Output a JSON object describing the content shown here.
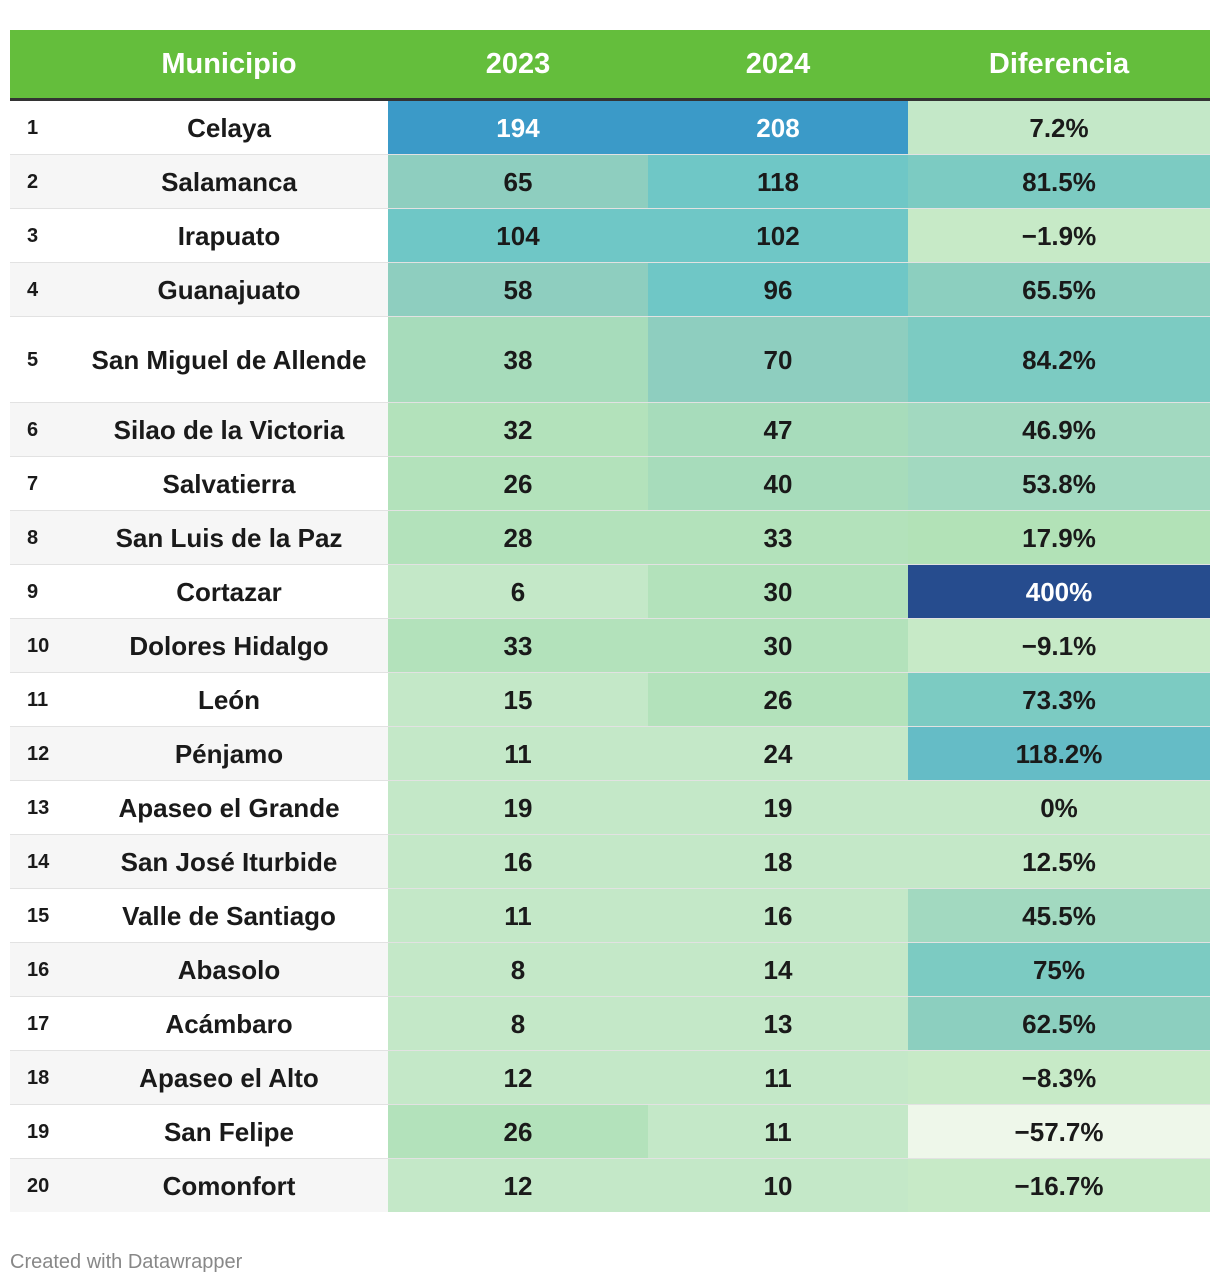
{
  "chart_data": {
    "type": "table",
    "columns": [
      "",
      "Municipio",
      "2023",
      "2024",
      "Diferencia"
    ],
    "rows": [
      {
        "rank": "1",
        "municipio": "Celaya",
        "y2023": "194",
        "y2024": "208",
        "diff": "7.2%",
        "v2023": 194,
        "v2024": 208,
        "vdiff": 7.2
      },
      {
        "rank": "2",
        "municipio": "Salamanca",
        "y2023": "65",
        "y2024": "118",
        "diff": "81.5%",
        "v2023": 65,
        "v2024": 118,
        "vdiff": 81.5
      },
      {
        "rank": "3",
        "municipio": "Irapuato",
        "y2023": "104",
        "y2024": "102",
        "diff": "−1.9%",
        "v2023": 104,
        "v2024": 102,
        "vdiff": -1.9
      },
      {
        "rank": "4",
        "municipio": "Guanajuato",
        "y2023": "58",
        "y2024": "96",
        "diff": "65.5%",
        "v2023": 58,
        "v2024": 96,
        "vdiff": 65.5
      },
      {
        "rank": "5",
        "municipio": "San Miguel de Allende",
        "y2023": "38",
        "y2024": "70",
        "diff": "84.2%",
        "v2023": 38,
        "v2024": 70,
        "vdiff": 84.2
      },
      {
        "rank": "6",
        "municipio": "Silao de la Victoria",
        "y2023": "32",
        "y2024": "47",
        "diff": "46.9%",
        "v2023": 32,
        "v2024": 47,
        "vdiff": 46.9
      },
      {
        "rank": "7",
        "municipio": "Salvatierra",
        "y2023": "26",
        "y2024": "40",
        "diff": "53.8%",
        "v2023": 26,
        "v2024": 40,
        "vdiff": 53.8
      },
      {
        "rank": "8",
        "municipio": "San Luis de la Paz",
        "y2023": "28",
        "y2024": "33",
        "diff": "17.9%",
        "v2023": 28,
        "v2024": 33,
        "vdiff": 17.9
      },
      {
        "rank": "9",
        "municipio": "Cortazar",
        "y2023": "6",
        "y2024": "30",
        "diff": "400%",
        "v2023": 6,
        "v2024": 30,
        "vdiff": 400
      },
      {
        "rank": "10",
        "municipio": "Dolores Hidalgo",
        "y2023": "33",
        "y2024": "30",
        "diff": "−9.1%",
        "v2023": 33,
        "v2024": 30,
        "vdiff": -9.1
      },
      {
        "rank": "11",
        "municipio": "León",
        "y2023": "15",
        "y2024": "26",
        "diff": "73.3%",
        "v2023": 15,
        "v2024": 26,
        "vdiff": 73.3
      },
      {
        "rank": "12",
        "municipio": "Pénjamo",
        "y2023": "11",
        "y2024": "24",
        "diff": "118.2%",
        "v2023": 11,
        "v2024": 24,
        "vdiff": 118.2
      },
      {
        "rank": "13",
        "municipio": "Apaseo el Grande",
        "y2023": "19",
        "y2024": "19",
        "diff": "0%",
        "v2023": 19,
        "v2024": 19,
        "vdiff": 0
      },
      {
        "rank": "14",
        "municipio": "San José Iturbide",
        "y2023": "16",
        "y2024": "18",
        "diff": "12.5%",
        "v2023": 16,
        "v2024": 18,
        "vdiff": 12.5
      },
      {
        "rank": "15",
        "municipio": "Valle de Santiago",
        "y2023": "11",
        "y2024": "16",
        "diff": "45.5%",
        "v2023": 11,
        "v2024": 16,
        "vdiff": 45.5
      },
      {
        "rank": "16",
        "municipio": "Abasolo",
        "y2023": "8",
        "y2024": "14",
        "diff": "75%",
        "v2023": 8,
        "v2024": 14,
        "vdiff": 75
      },
      {
        "rank": "17",
        "municipio": "Acámbaro",
        "y2023": "8",
        "y2024": "13",
        "diff": "62.5%",
        "v2023": 8,
        "v2024": 13,
        "vdiff": 62.5
      },
      {
        "rank": "18",
        "municipio": "Apaseo el Alto",
        "y2023": "12",
        "y2024": "11",
        "diff": "−8.3%",
        "v2023": 12,
        "v2024": 11,
        "vdiff": -8.3
      },
      {
        "rank": "19",
        "municipio": "San Felipe",
        "y2023": "26",
        "y2024": "11",
        "diff": "−57.7%",
        "v2023": 26,
        "v2024": 11,
        "vdiff": -57.7
      },
      {
        "rank": "20",
        "municipio": "Comonfort",
        "y2023": "12",
        "y2024": "10",
        "diff": "−16.7%",
        "v2023": 12,
        "v2024": 10,
        "vdiff": -16.7
      }
    ]
  },
  "colors": {
    "header": "#64be3c",
    "c2023": "#c4e8c8",
    "c2024": "#b3e2bb",
    "c55": "#a7dcbb",
    "c65": "#8ecebf",
    "c100": "#6fc7c6",
    "c200": "#3b9ac8",
    "dneg": "#c7eac7",
    "d0": "#c4e8c8",
    "d15": "#b2e2b7",
    "d45": "#a2d9c0",
    "d65": "#8ccfbf",
    "d80": "#7ccbc2",
    "d118": "#65bcc6",
    "d400": "#264c8e"
  },
  "footer": "Created with Datawrapper"
}
